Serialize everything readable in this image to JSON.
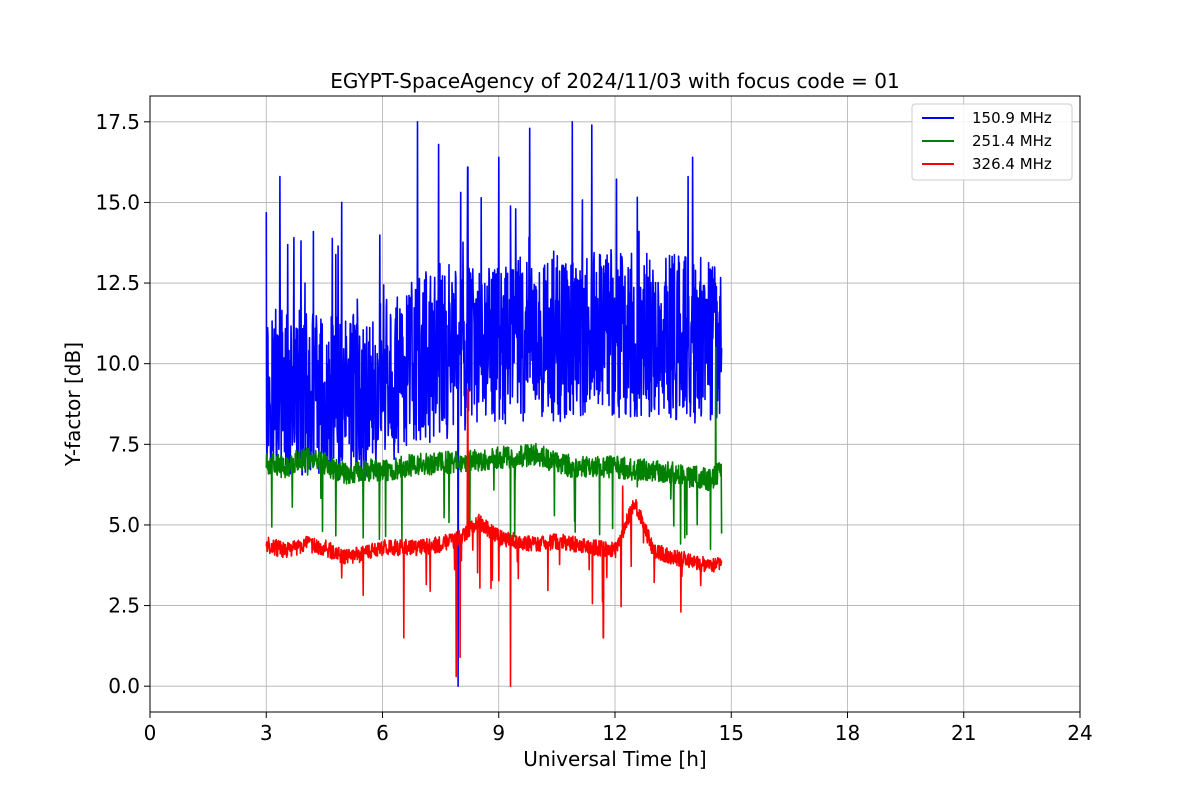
{
  "chart_data": {
    "type": "line",
    "title": "EGYPT-SpaceAgency of 2024/11/03 with focus code = 01",
    "xlabel": "Universal Time [h]",
    "ylabel": "Y-factor [dB]",
    "xlim": [
      0,
      24
    ],
    "ylim": [
      -0.8,
      18.3
    ],
    "xticks": [
      "0",
      "3",
      "6",
      "9",
      "12",
      "15",
      "18",
      "21",
      "24"
    ],
    "yticks": [
      "0.0",
      "2.5",
      "5.0",
      "7.5",
      "10.0",
      "12.5",
      "15.0",
      "17.5"
    ],
    "grid": true,
    "legend_position": "top-right",
    "x_range_of_data": [
      3.0,
      14.75
    ],
    "series": [
      {
        "name": "150.9 MHz",
        "color": "#0000ff",
        "x": [
          3.0,
          3.5,
          4.0,
          4.5,
          5.0,
          5.5,
          6.0,
          6.5,
          7.0,
          7.5,
          8.0,
          8.5,
          9.0,
          9.5,
          10.0,
          10.5,
          11.0,
          11.5,
          12.0,
          12.5,
          13.0,
          13.5,
          14.0,
          14.5,
          14.75
        ],
        "y": [
          9.3,
          9.0,
          9.1,
          8.9,
          8.8,
          9.0,
          9.3,
          9.8,
          10.1,
          10.2,
          10.4,
          10.5,
          10.6,
          10.7,
          10.8,
          10.7,
          10.8,
          10.9,
          10.8,
          10.9,
          10.8,
          10.8,
          10.7,
          10.8,
          10.8
        ],
        "spikes": [
          [
            3.0,
            14.7
          ],
          [
            3.35,
            15.8
          ],
          [
            4.0,
            12.5
          ],
          [
            4.95,
            15.0
          ],
          [
            6.9,
            17.5
          ],
          [
            7.45,
            16.8
          ],
          [
            8.2,
            16.1
          ],
          [
            9.0,
            16.4
          ],
          [
            9.8,
            17.3
          ],
          [
            10.9,
            17.5
          ],
          [
            11.4,
            17.4
          ],
          [
            14.0,
            16.4
          ]
        ],
        "dips": [
          [
            7.95,
            0.0
          ]
        ]
      },
      {
        "name": "251.4 MHz",
        "color": "#008000",
        "x": [
          3.0,
          3.5,
          4.0,
          4.5,
          5.0,
          5.5,
          6.0,
          6.5,
          7.0,
          7.5,
          8.0,
          8.5,
          9.0,
          9.5,
          10.0,
          10.5,
          11.0,
          11.5,
          12.0,
          12.5,
          13.0,
          13.5,
          14.0,
          14.5,
          14.75
        ],
        "y": [
          6.9,
          6.8,
          7.1,
          6.9,
          6.6,
          6.7,
          6.7,
          6.8,
          6.9,
          6.9,
          7.0,
          7.0,
          7.1,
          7.1,
          7.2,
          6.9,
          6.8,
          6.8,
          6.8,
          6.7,
          6.7,
          6.6,
          6.5,
          6.4,
          6.7
        ],
        "spikes": [
          [
            14.6,
            10.5
          ]
        ],
        "dips": [
          [
            4.45,
            4.8
          ],
          [
            5.5,
            4.6
          ],
          [
            6.5,
            4.5
          ],
          [
            8.25,
            4.9
          ],
          [
            9.3,
            4.4
          ],
          [
            11.6,
            4.7
          ],
          [
            13.8,
            4.6
          ]
        ]
      },
      {
        "name": "326.4 MHz",
        "color": "#ff0000",
        "x": [
          3.0,
          3.5,
          4.0,
          4.5,
          5.0,
          5.5,
          6.0,
          6.5,
          7.0,
          7.5,
          8.0,
          8.5,
          9.0,
          9.5,
          10.0,
          10.5,
          11.0,
          11.5,
          12.0,
          12.5,
          13.0,
          13.5,
          14.0,
          14.5,
          14.75
        ],
        "y": [
          4.4,
          4.2,
          4.4,
          4.3,
          4.0,
          4.1,
          4.3,
          4.3,
          4.3,
          4.4,
          4.6,
          5.1,
          4.6,
          4.5,
          4.4,
          4.5,
          4.4,
          4.3,
          4.2,
          5.7,
          4.2,
          4.0,
          3.9,
          3.7,
          3.9
        ],
        "spikes": [
          [
            8.2,
            9.2
          ],
          [
            12.2,
            6.2
          ]
        ],
        "dips": [
          [
            6.55,
            1.5
          ],
          [
            7.9,
            0.3
          ],
          [
            8.0,
            0.9
          ],
          [
            9.3,
            0.0
          ],
          [
            11.7,
            1.5
          ],
          [
            13.7,
            2.3
          ]
        ]
      }
    ]
  }
}
